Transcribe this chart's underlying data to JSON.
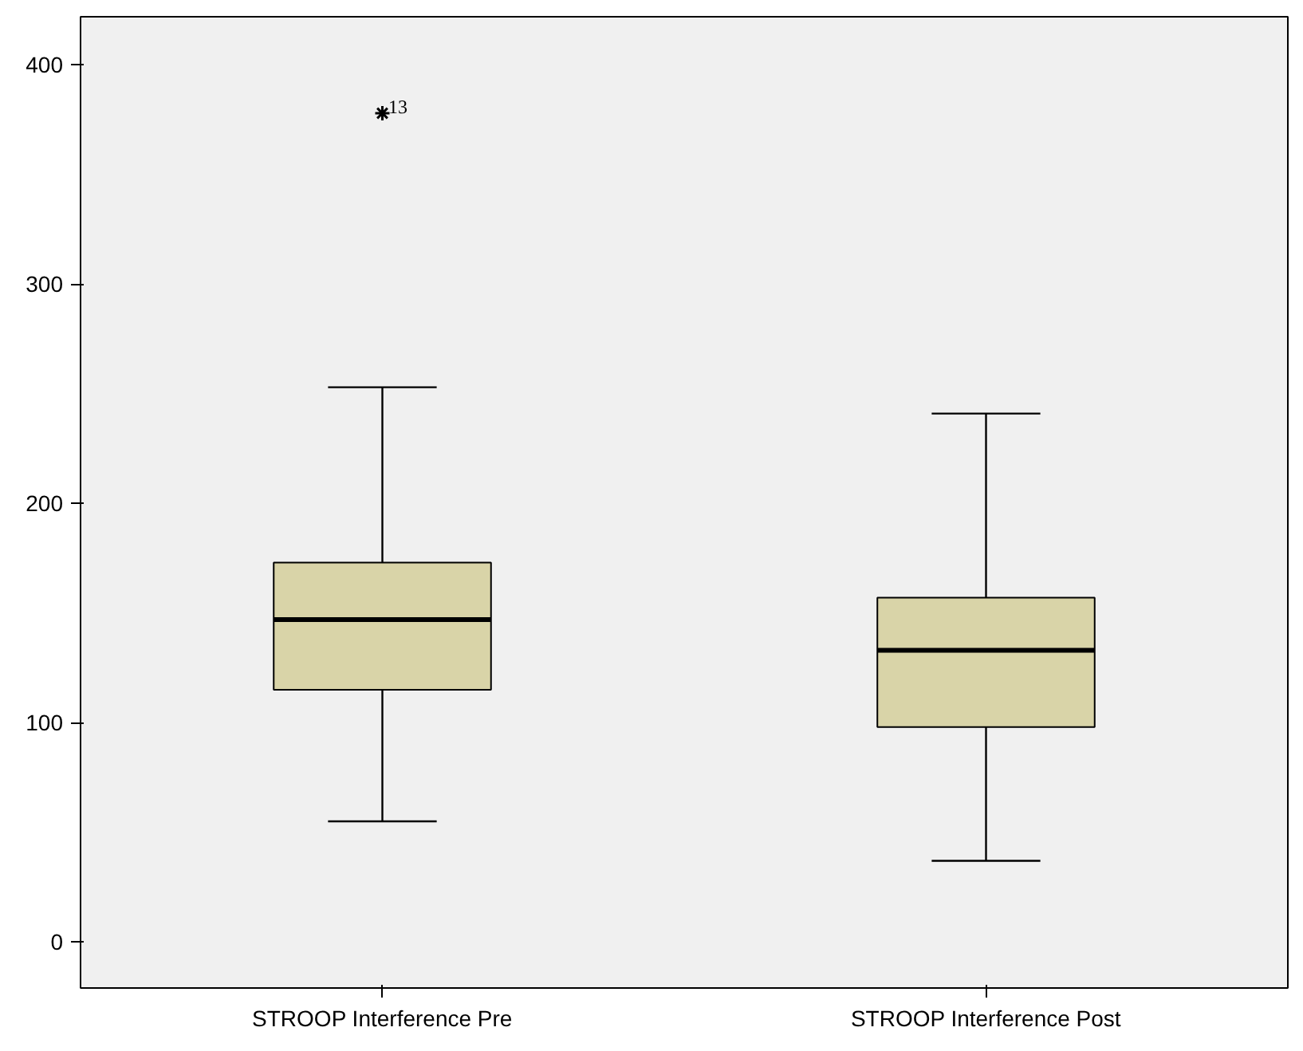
{
  "chart_data": {
    "type": "box",
    "categories": [
      "STROOP Interference Pre",
      "STROOP Interference Post"
    ],
    "boxes": [
      {
        "low": 55,
        "q1": 115,
        "median": 147,
        "q3": 173,
        "high": 253,
        "outliers": [
          378
        ]
      },
      {
        "low": 37,
        "q1": 98,
        "median": 133,
        "q3": 157,
        "high": 241
      }
    ],
    "color": "#d9d4a8",
    "marker": "star",
    "ylim": [
      -21,
      422
    ],
    "yticks": [
      0,
      100,
      200,
      300,
      400
    ],
    "grid": false,
    "annotations": [
      "13"
    ]
  }
}
